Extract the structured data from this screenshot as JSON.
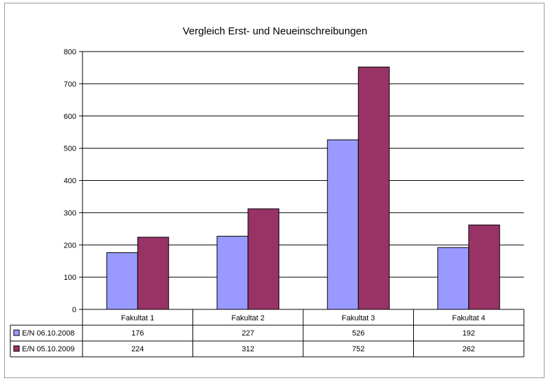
{
  "chart_data": {
    "type": "bar",
    "title": "Vergleich Erst- und Neueinschreibungen",
    "categories": [
      "Fakultat 1",
      "Fakultat 2",
      "Fakultat 3",
      "Fakultat 4"
    ],
    "series": [
      {
        "name": "E/N 06.10.2008",
        "values": [
          176,
          227,
          526,
          192
        ],
        "color": "#9999ff",
        "labels": [
          "176",
          "227",
          "526",
          "192"
        ]
      },
      {
        "name": "E/N 05.10.2009",
        "values": [
          224,
          312,
          752,
          262
        ],
        "color": "#993366",
        "labels": [
          "224",
          "312",
          "752",
          "262"
        ]
      }
    ],
    "yticks": [
      "0",
      "100",
      "200",
      "300",
      "400",
      "500",
      "600",
      "700",
      "800"
    ],
    "ylim": [
      0,
      800
    ],
    "grid": true,
    "legend": "data-table"
  }
}
